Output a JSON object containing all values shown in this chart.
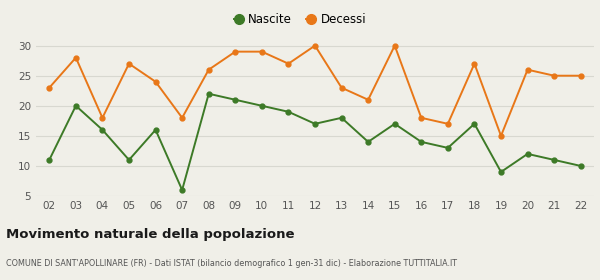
{
  "years": [
    "02",
    "03",
    "04",
    "05",
    "06",
    "07",
    "08",
    "09",
    "10",
    "11",
    "12",
    "13",
    "14",
    "15",
    "16",
    "17",
    "18",
    "19",
    "20",
    "21",
    "22"
  ],
  "nascite": [
    11,
    20,
    16,
    11,
    16,
    6,
    22,
    21,
    20,
    19,
    17,
    18,
    14,
    17,
    14,
    13,
    17,
    9,
    12,
    11,
    10
  ],
  "decessi": [
    23,
    28,
    18,
    27,
    24,
    18,
    26,
    29,
    29,
    27,
    30,
    23,
    21,
    30,
    18,
    17,
    27,
    15,
    26,
    25,
    25
  ],
  "nascite_color": "#3d7a27",
  "decessi_color": "#e87718",
  "bg_color": "#f0efe8",
  "grid_color": "#d8d8d0",
  "ylim": [
    5,
    32
  ],
  "yticks": [
    5,
    10,
    15,
    20,
    25,
    30
  ],
  "title": "Movimento naturale della popolazione",
  "subtitle": "COMUNE DI SANT'APOLLINARE (FR) - Dati ISTAT (bilancio demografico 1 gen-31 dic) - Elaborazione TUTTITALIA.IT",
  "legend_nascite": "Nascite",
  "legend_decessi": "Decessi",
  "marker_size": 3.5,
  "line_width": 1.4
}
